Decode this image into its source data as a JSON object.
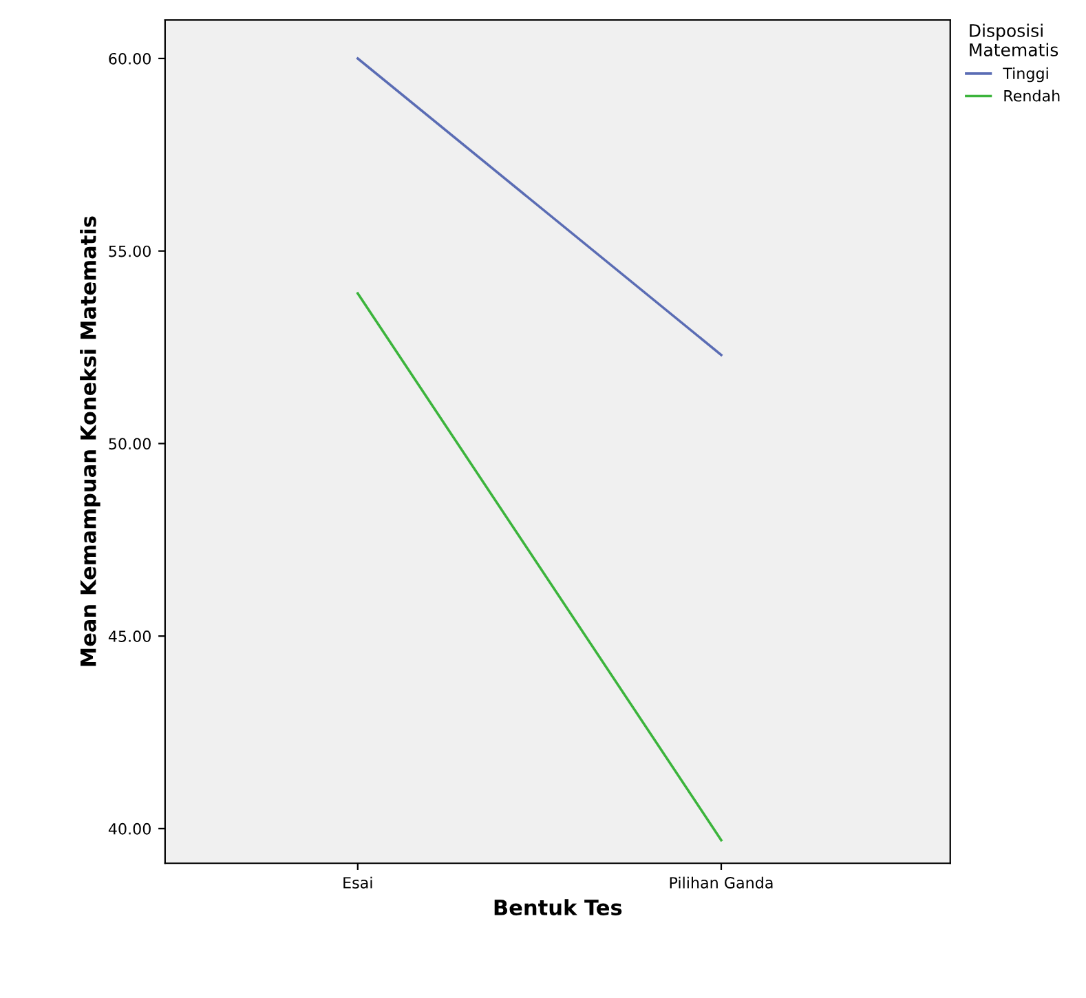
{
  "chart_data": {
    "type": "line",
    "xlabel": "Bentuk Tes",
    "ylabel": "Mean Kemampuan Koneksi Matematis",
    "legend_title": "Disposisi\nMatematis",
    "categories": [
      "Esai",
      "Pilihan Ganda"
    ],
    "series": [
      {
        "name": "Tinggi",
        "color": "#5a6cb4",
        "values": [
          60.0,
          52.3
        ]
      },
      {
        "name": "Rendah",
        "color": "#3cb43c",
        "values": [
          53.9,
          39.7
        ]
      }
    ],
    "ylim": [
      39.1,
      61.0
    ],
    "yticks": [
      {
        "value": 40,
        "label": "40.00"
      },
      {
        "value": 45,
        "label": "45.00"
      },
      {
        "value": 50,
        "label": "50.00"
      },
      {
        "value": 55,
        "label": "55.00"
      },
      {
        "value": 60,
        "label": "60.00"
      }
    ],
    "grid": false,
    "legend": "top right",
    "marker": "none",
    "line_style": "solid"
  }
}
